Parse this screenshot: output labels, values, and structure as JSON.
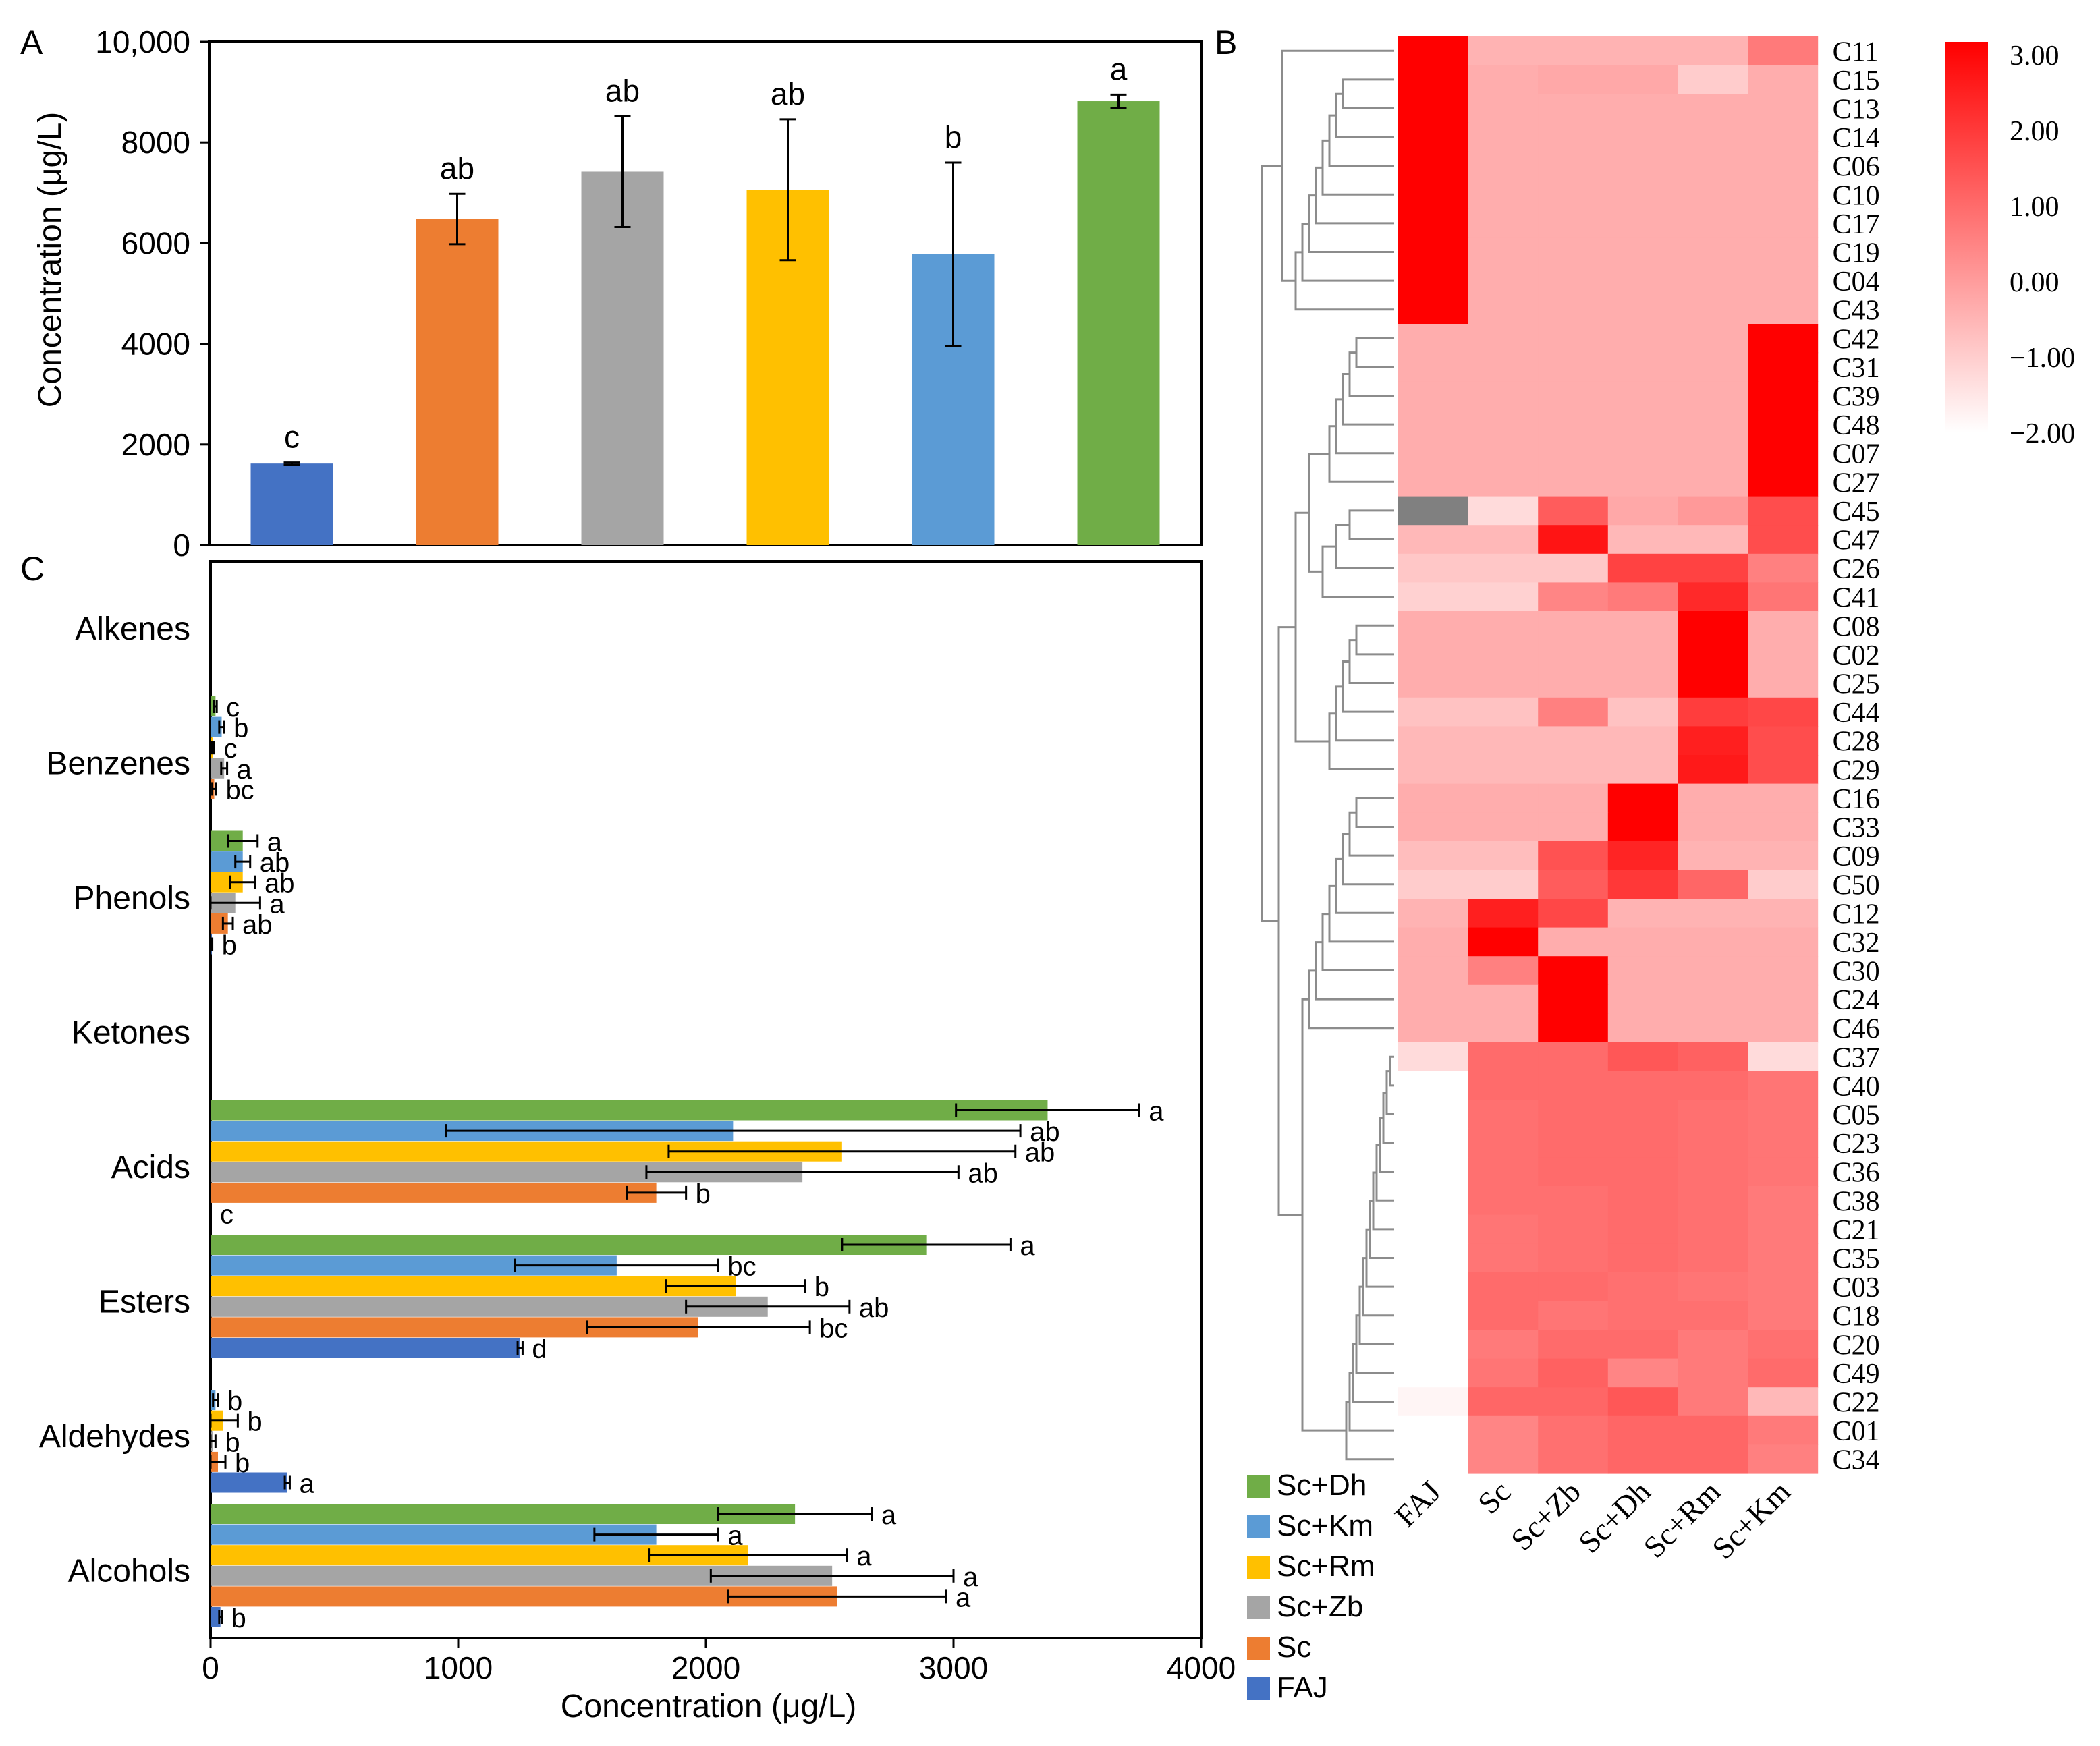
{
  "colors": {
    "FAJ": "#4472C4",
    "Sc": "#ED7D31",
    "Sc+Zb": "#A5A5A5",
    "Sc+Rm": "#FFC000",
    "Sc+Km": "#5B9BD5",
    "Sc+Dh": "#70AD47",
    "heat_max": "#FF0000",
    "heat_min": "#FFFFFF",
    "heat_na": "#808080",
    "dendro": "#8c8c8c"
  },
  "legend": {
    "entries": [
      "Sc+Dh",
      "Sc+Km",
      "Sc+Rm",
      "Sc+Zb",
      "Sc",
      "FAJ"
    ]
  },
  "chart_data": [
    {
      "panel": "A",
      "type": "bar",
      "ylabel": "Concentration (μg/L)",
      "ylim": [
        0,
        10000
      ],
      "yticks": [
        "0",
        "2000",
        "4000",
        "6000",
        "8000",
        "10,000"
      ],
      "categories": [
        "FAJ",
        "Sc",
        "Sc+Zb",
        "Sc+Rm",
        "Sc+Km",
        "Sc+Dh"
      ],
      "values": [
        1620,
        6480,
        7420,
        7060,
        5780,
        8820
      ],
      "errors": [
        20,
        500,
        1100,
        1400,
        1820,
        130
      ],
      "letters": [
        "c",
        "ab",
        "ab",
        "ab",
        "b",
        "a"
      ]
    },
    {
      "panel": "B",
      "type": "heatmap",
      "columns": [
        "FAJ",
        "Sc",
        "Sc+Zb",
        "Sc+Dh",
        "Sc+Rm",
        "Sc+Km"
      ],
      "rows": [
        "C11",
        "C15",
        "C13",
        "C14",
        "C06",
        "C10",
        "C17",
        "C19",
        "C04",
        "C43",
        "C42",
        "C31",
        "C39",
        "C48",
        "C07",
        "C27",
        "C45",
        "C47",
        "C26",
        "C41",
        "C08",
        "C02",
        "C25",
        "C44",
        "C28",
        "C29",
        "C16",
        "C33",
        "C09",
        "C50",
        "C12",
        "C32",
        "C30",
        "C24",
        "C46",
        "C37",
        "C40",
        "C05",
        "C23",
        "C36",
        "C38",
        "C21",
        "C35",
        "C03",
        "C18",
        "C20",
        "C49",
        "C22",
        "C01",
        "C34"
      ],
      "values": [
        [
          3,
          -0.5,
          -0.5,
          -0.5,
          -0.5,
          0.6
        ],
        [
          3,
          -0.4,
          -0.3,
          -0.3,
          -1.0,
          -0.4
        ],
        [
          3,
          -0.4,
          -0.4,
          -0.4,
          -0.4,
          -0.4
        ],
        [
          3,
          -0.4,
          -0.4,
          -0.4,
          -0.4,
          -0.4
        ],
        [
          3,
          -0.4,
          -0.4,
          -0.4,
          -0.4,
          -0.4
        ],
        [
          3,
          -0.4,
          -0.4,
          -0.4,
          -0.4,
          -0.4
        ],
        [
          3,
          -0.4,
          -0.4,
          -0.4,
          -0.4,
          -0.4
        ],
        [
          3,
          -0.4,
          -0.4,
          -0.4,
          -0.4,
          -0.4
        ],
        [
          3,
          -0.4,
          -0.4,
          -0.4,
          -0.4,
          -0.4
        ],
        [
          3,
          -0.4,
          -0.4,
          -0.4,
          -0.4,
          -0.4
        ],
        [
          -0.4,
          -0.4,
          -0.4,
          -0.4,
          -0.4,
          3
        ],
        [
          -0.4,
          -0.4,
          -0.4,
          -0.4,
          -0.4,
          3
        ],
        [
          -0.4,
          -0.4,
          -0.4,
          -0.4,
          -0.4,
          3
        ],
        [
          -0.4,
          -0.4,
          -0.4,
          -0.4,
          -0.4,
          3
        ],
        [
          -0.4,
          -0.4,
          -0.4,
          -0.4,
          -0.4,
          3
        ],
        [
          -0.4,
          -0.4,
          -0.4,
          -0.4,
          -0.4,
          3
        ],
        [
          null,
          -1.3,
          1.2,
          -0.3,
          0.0,
          1.5
        ],
        [
          -0.6,
          -0.6,
          2.6,
          -0.6,
          -0.6,
          1.5
        ],
        [
          -0.9,
          -0.9,
          -0.9,
          1.7,
          1.7,
          0.5
        ],
        [
          -1.1,
          -1.1,
          0.4,
          0.6,
          2.2,
          0.7
        ],
        [
          -0.4,
          -0.4,
          -0.4,
          -0.4,
          3,
          -0.4
        ],
        [
          -0.4,
          -0.4,
          -0.4,
          -0.4,
          3,
          -0.4
        ],
        [
          -0.4,
          -0.4,
          -0.4,
          -0.4,
          3,
          -0.4
        ],
        [
          -0.8,
          -0.8,
          0.5,
          -0.8,
          1.8,
          1.6
        ],
        [
          -0.6,
          -0.6,
          -0.6,
          -0.6,
          2.4,
          1.5
        ],
        [
          -0.6,
          -0.6,
          -0.6,
          -0.6,
          2.5,
          1.5
        ],
        [
          -0.4,
          -0.4,
          -0.4,
          3,
          -0.4,
          -0.4
        ],
        [
          -0.4,
          -0.4,
          -0.4,
          3,
          -0.4,
          -0.4
        ],
        [
          -0.7,
          -0.7,
          1.4,
          2.3,
          -0.5,
          -0.5
        ],
        [
          -1.0,
          -1.0,
          1.2,
          1.9,
          1.0,
          -1.0
        ],
        [
          -0.5,
          2.4,
          1.6,
          -0.5,
          -0.5,
          -0.5
        ],
        [
          -0.4,
          3,
          -0.4,
          -0.4,
          -0.4,
          -0.4
        ],
        [
          -0.4,
          0.5,
          3,
          -0.4,
          -0.4,
          -0.4
        ],
        [
          -0.4,
          -0.4,
          3,
          -0.4,
          -0.4,
          -0.4
        ],
        [
          -0.4,
          -0.4,
          3,
          -0.4,
          -0.4,
          -0.4
        ],
        [
          -1.3,
          0.9,
          0.9,
          1.3,
          1.1,
          -1.3
        ],
        [
          -2,
          0.9,
          0.9,
          0.9,
          0.9,
          0.7
        ],
        [
          -2,
          0.8,
          0.9,
          0.9,
          0.8,
          0.7
        ],
        [
          -2,
          0.8,
          0.9,
          0.9,
          0.8,
          0.7
        ],
        [
          -2,
          0.8,
          0.9,
          0.9,
          0.8,
          0.7
        ],
        [
          -2,
          0.8,
          0.8,
          0.9,
          0.8,
          0.6
        ],
        [
          -2,
          0.7,
          0.8,
          0.9,
          0.8,
          0.6
        ],
        [
          -2,
          0.7,
          0.8,
          0.9,
          0.8,
          0.6
        ],
        [
          -2,
          0.9,
          0.9,
          0.8,
          0.7,
          0.6
        ],
        [
          -2,
          0.9,
          0.7,
          0.8,
          0.8,
          0.6
        ],
        [
          -2,
          0.6,
          0.9,
          0.9,
          0.6,
          0.8
        ],
        [
          -2,
          0.7,
          1.1,
          0.4,
          0.6,
          0.9
        ],
        [
          -1.8,
          1.0,
          1.0,
          1.3,
          0.6,
          -0.6
        ],
        [
          -2,
          0.4,
          0.8,
          1.0,
          1.0,
          0.6
        ],
        [
          -2,
          0.4,
          0.8,
          1.0,
          1.0,
          0.5
        ]
      ],
      "scale_ticks": [
        "3.00",
        "2.00",
        "1.00",
        "0.00",
        "−1.00",
        "−2.00"
      ],
      "scale_range": [
        -2,
        3
      ]
    },
    {
      "panel": "C",
      "type": "bar",
      "orientation": "horizontal",
      "xlabel": "Concentration (μg/L)",
      "xlim": [
        0,
        4000
      ],
      "xticks": [
        "0",
        "1000",
        "2000",
        "3000",
        "4000"
      ],
      "series_order_bottom_to_top": [
        "FAJ",
        "Sc",
        "Sc+Zb",
        "Sc+Rm",
        "Sc+Km",
        "Sc+Dh"
      ],
      "groups": [
        {
          "name": "Alkenes",
          "values": [
            0,
            0,
            0,
            0,
            0,
            0
          ],
          "errors": [
            0,
            0,
            0,
            0,
            0,
            0
          ],
          "letters": [
            "",
            "",
            "",
            "",
            "",
            ""
          ]
        },
        {
          "name": "Benzenes",
          "values": [
            0,
            15,
            55,
            10,
            45,
            20
          ],
          "errors": [
            0,
            8,
            12,
            5,
            10,
            5
          ],
          "letters": [
            "",
            "bc",
            "a",
            "c",
            "b",
            "c"
          ]
        },
        {
          "name": "Phenols",
          "values": [
            5,
            70,
            100,
            130,
            130,
            130
          ],
          "errors": [
            2,
            20,
            100,
            50,
            30,
            60
          ],
          "letters": [
            "b",
            "ab",
            "a",
            "ab",
            "ab",
            "a"
          ]
        },
        {
          "name": "Ketones",
          "values": [
            0,
            0,
            0,
            0,
            0,
            0
          ],
          "errors": [
            0,
            0,
            0,
            0,
            0,
            0
          ],
          "letters": [
            "",
            "",
            "",
            "",
            "",
            ""
          ]
        },
        {
          "name": "Acids",
          "values": [
            0,
            1800,
            2390,
            2550,
            2110,
            3380
          ],
          "errors": [
            0,
            120,
            630,
            700,
            1160,
            370
          ],
          "letters": [
            "c",
            "b",
            "ab",
            "ab",
            "ab",
            "a"
          ]
        },
        {
          "name": "Esters",
          "values": [
            1250,
            1970,
            2250,
            2120,
            1640,
            2890
          ],
          "errors": [
            10,
            450,
            330,
            280,
            410,
            340
          ],
          "letters": [
            "d",
            "bc",
            "ab",
            "b",
            "bc",
            "a"
          ]
        },
        {
          "name": "Aldehydes",
          "values": [
            310,
            30,
            10,
            50,
            20,
            0
          ],
          "errors": [
            10,
            30,
            10,
            60,
            10,
            0
          ],
          "letters": [
            "a",
            "b",
            "b",
            "b",
            "b",
            ""
          ]
        },
        {
          "name": "Alcohols",
          "values": [
            40,
            2530,
            2510,
            2170,
            1800,
            2360
          ],
          "errors": [
            5,
            440,
            490,
            400,
            250,
            310
          ],
          "letters": [
            "b",
            "a",
            "a",
            "a",
            "a",
            "a"
          ]
        }
      ]
    }
  ],
  "panel_labels": {
    "A": "A",
    "B": "B",
    "C": "C"
  }
}
